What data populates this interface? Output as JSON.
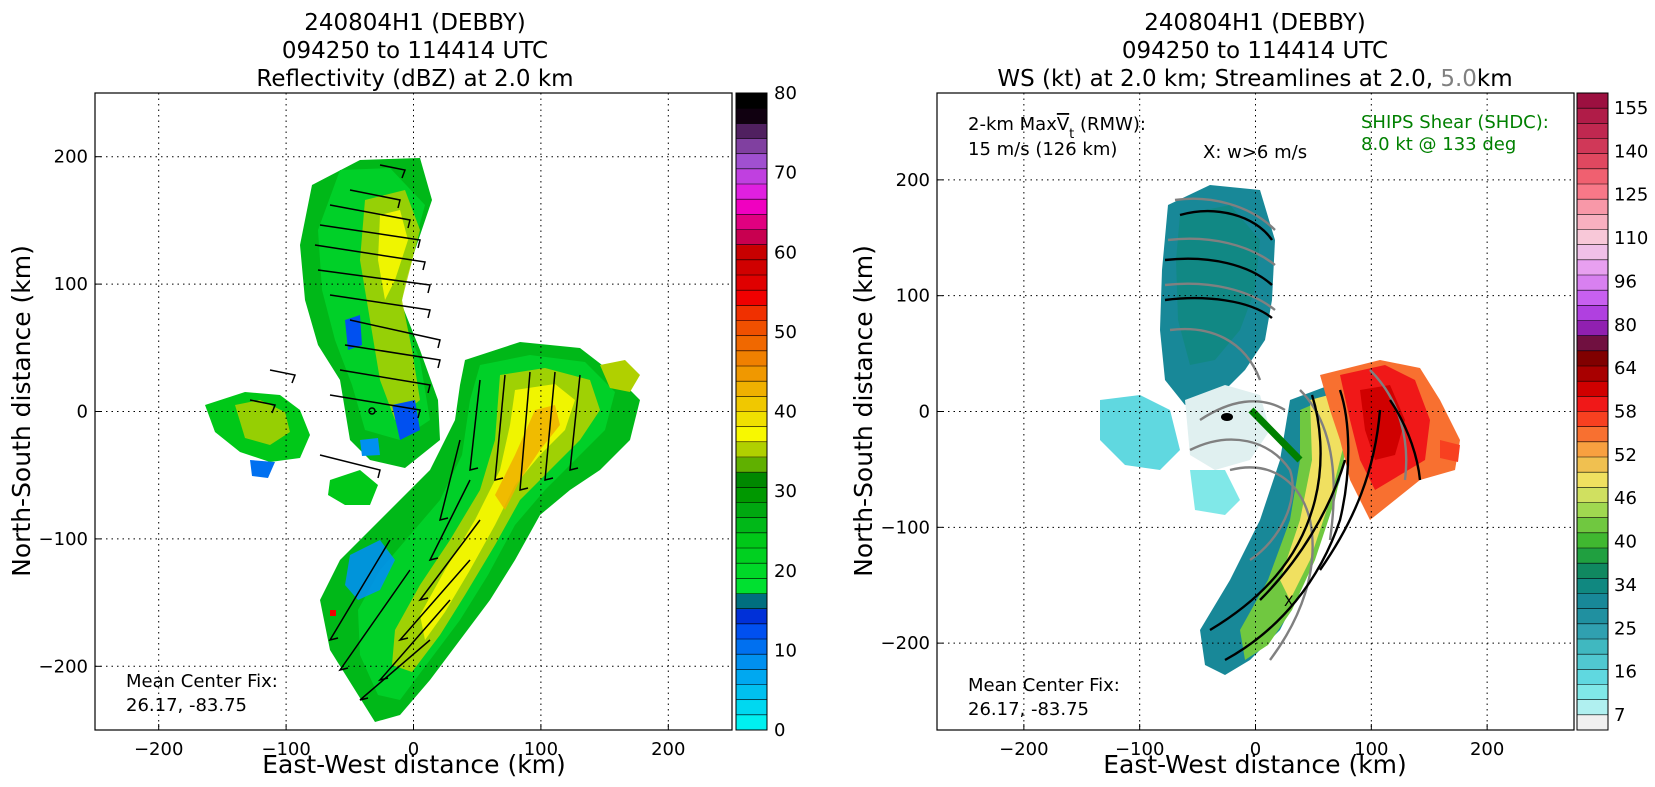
{
  "chart_data": [
    {
      "type": "heatmap",
      "title_lines": [
        "240804H1 (DEBBY)",
        "094250 to 114414 UTC",
        "Reflectivity (dBZ) at 2.0 km"
      ],
      "xlabel": "East-West distance (km)",
      "ylabel": "North-South distance (km)",
      "xlim": [
        -250,
        250
      ],
      "ylim": [
        -250,
        250
      ],
      "xticks": [
        -200,
        -100,
        0,
        100,
        200
      ],
      "yticks": [
        -200,
        -100,
        0,
        100,
        200
      ],
      "xtick_labels": [
        "−200",
        "−100",
        "0",
        "100",
        "200"
      ],
      "ytick_labels": [
        "−200",
        "−100",
        "0",
        "100",
        "200"
      ],
      "grid": true,
      "overlay": "wind barbs",
      "annotation_lines": [
        "Mean Center Fix:",
        "26.17, -83.75"
      ],
      "colorbar": {
        "min": 0,
        "max": 80,
        "step": 2.5,
        "tick_values": [
          0,
          10,
          20,
          30,
          40,
          50,
          60,
          70,
          80
        ],
        "tick_labels": [
          "0",
          "10",
          "20",
          "30",
          "40",
          "50",
          "60",
          "70",
          "80"
        ],
        "colors": [
          "#00f0f0",
          "#00d8f0",
          "#00c0f0",
          "#00a8f0",
          "#0090f0",
          "#0070f0",
          "#0050f0",
          "#0030d8",
          "#006f7f",
          "#00e030",
          "#00d828",
          "#00d020",
          "#00c818",
          "#00b818",
          "#00a810",
          "#009800",
          "#008800",
          "#60b000",
          "#b0d000",
          "#f8f800",
          "#f0e000",
          "#f0c800",
          "#f0b000",
          "#f09800",
          "#f08000",
          "#f06800",
          "#f05000",
          "#f03000",
          "#f00000",
          "#e00000",
          "#d00000",
          "#c80000",
          "#c80050",
          "#e00080",
          "#f000c0",
          "#e020e0",
          "#c040e0",
          "#a050d0",
          "#8040a0",
          "#502060",
          "#100010",
          "#000000"
        ]
      }
    },
    {
      "type": "heatmap",
      "title_lines": [
        "240804H1 (DEBBY)",
        "094250 to 114414 UTC"
      ],
      "title_line3_parts": [
        "WS (kt) at 2.0 km; Streamlines at 2.0, ",
        "5.0",
        "km"
      ],
      "xlabel": "East-West distance (km)",
      "ylabel": "North-South distance (km)",
      "xlim": [
        -275,
        275
      ],
      "ylim": [
        -275,
        275
      ],
      "xticks": [
        -200,
        -100,
        0,
        100,
        200
      ],
      "yticks": [
        -200,
        -100,
        0,
        100,
        200
      ],
      "xtick_labels": [
        "−200",
        "−100",
        "0",
        "100",
        "200"
      ],
      "ytick_labels": [
        "−200",
        "−100",
        "0",
        "100",
        "200"
      ],
      "grid": true,
      "overlay": "streamlines",
      "maxv_lines": [
        "2-km Max",
        "V",
        "t",
        " (RMW):",
        "15 m/s (126 km)"
      ],
      "w_note": "X: w>6 m/s",
      "shear_lines": [
        "SHIPS Shear (SHDC):",
        "8.0 kt @ 133 deg"
      ],
      "shear_color": "#008000",
      "shear_vector": {
        "speed_kt": 8.0,
        "direction_deg": 133
      },
      "annotation_lines": [
        "Mean Center Fix:",
        "26.17, -83.75"
      ],
      "colorbar": {
        "tick_labels_top_down": [
          "155",
          "140",
          "125",
          "110",
          "96",
          "80",
          "64",
          "58",
          "52",
          "46",
          "40",
          "34",
          "25",
          "16",
          "7"
        ],
        "colors_top_down": [
          "#9c1040",
          "#b01c48",
          "#c02850",
          "#d03858",
          "#e04860",
          "#f06070",
          "#f87888",
          "#f898a8",
          "#f8b0c0",
          "#f8c8d8",
          "#f0c0e8",
          "#e8a0f0",
          "#d880f0",
          "#c860f0",
          "#b040e0",
          "#9020b0",
          "#701040",
          "#800000",
          "#a80000",
          "#d00000",
          "#f01818",
          "#f84020",
          "#f87030",
          "#f8a040",
          "#f0c050",
          "#f0e060",
          "#d0e060",
          "#a0d850",
          "#70c840",
          "#40b830",
          "#20a040",
          "#108860",
          "#108880",
          "#188898",
          "#2090a0",
          "#30a0b0",
          "#40b8c0",
          "#50c8d0",
          "#60d8e0",
          "#80e8e8",
          "#b0f0f0",
          "#f0f0f0"
        ]
      }
    }
  ]
}
